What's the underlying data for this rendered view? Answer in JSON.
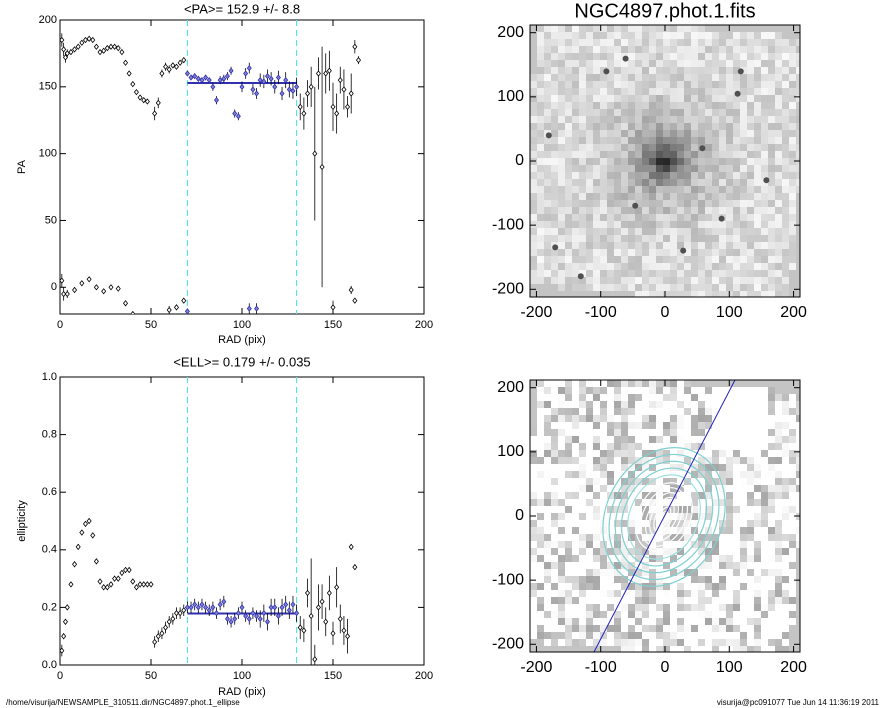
{
  "chart_data": [
    {
      "type": "errorbar",
      "title": "<PA>= 152.9 +/-   8.8",
      "x_label": "RAD (pix)",
      "y_label": "PA",
      "xlim": [
        0,
        200
      ],
      "xticks": [
        0,
        50,
        100,
        150,
        200
      ],
      "ylim": [
        -20,
        200
      ],
      "yticks": [
        0,
        50,
        100,
        150,
        200
      ],
      "color": "#000000",
      "fit_color": "#3030b0",
      "range_color": "#60e0e0",
      "mean": 152.9,
      "fit_range": [
        70,
        130
      ],
      "points": [
        [
          1,
          185,
          5
        ],
        [
          2,
          178,
          5
        ],
        [
          3,
          172,
          4
        ],
        [
          4,
          175,
          3
        ],
        [
          6,
          176,
          2
        ],
        [
          8,
          178,
          2
        ],
        [
          10,
          180,
          1
        ],
        [
          12,
          183,
          1
        ],
        [
          14,
          185,
          1
        ],
        [
          16,
          186,
          1
        ],
        [
          18,
          185,
          1
        ],
        [
          20,
          180,
          1
        ],
        [
          22,
          176,
          1
        ],
        [
          24,
          177,
          1
        ],
        [
          26,
          179,
          1
        ],
        [
          28,
          180,
          1
        ],
        [
          30,
          180,
          1
        ],
        [
          32,
          179,
          1
        ],
        [
          34,
          176,
          1
        ],
        [
          36,
          168,
          1
        ],
        [
          38,
          160,
          1
        ],
        [
          40,
          152,
          1
        ],
        [
          42,
          146,
          1
        ],
        [
          44,
          142,
          1
        ],
        [
          46,
          140,
          1
        ],
        [
          48,
          139,
          1
        ],
        [
          52,
          130,
          5
        ],
        [
          54,
          138,
          4
        ],
        [
          56,
          160,
          3
        ],
        [
          58,
          165,
          3
        ],
        [
          60,
          163,
          3
        ],
        [
          62,
          166,
          2
        ],
        [
          64,
          165,
          2
        ],
        [
          66,
          168,
          2
        ],
        [
          68,
          170,
          2
        ],
        [
          70,
          160,
          2
        ],
        [
          72,
          157,
          2
        ],
        [
          74,
          158,
          2
        ],
        [
          76,
          156,
          2
        ],
        [
          78,
          155,
          2
        ],
        [
          80,
          157,
          2
        ],
        [
          82,
          155,
          2
        ],
        [
          84,
          150,
          3
        ],
        [
          86,
          140,
          3
        ],
        [
          88,
          155,
          3
        ],
        [
          90,
          156,
          3
        ],
        [
          92,
          158,
          3
        ],
        [
          94,
          162,
          3
        ],
        [
          96,
          130,
          3
        ],
        [
          98,
          128,
          3
        ],
        [
          100,
          150,
          4
        ],
        [
          102,
          160,
          4
        ],
        [
          104,
          164,
          4
        ],
        [
          106,
          148,
          4
        ],
        [
          108,
          145,
          4
        ],
        [
          110,
          155,
          5
        ],
        [
          112,
          154,
          5
        ],
        [
          114,
          158,
          5
        ],
        [
          116,
          156,
          5
        ],
        [
          118,
          150,
          5
        ],
        [
          120,
          157,
          5
        ],
        [
          122,
          145,
          5
        ],
        [
          124,
          155,
          6
        ],
        [
          126,
          148,
          6
        ],
        [
          128,
          147,
          6
        ],
        [
          130,
          150,
          7
        ],
        [
          132,
          135,
          10
        ],
        [
          134,
          130,
          12
        ],
        [
          136,
          145,
          10
        ],
        [
          138,
          150,
          15
        ],
        [
          140,
          100,
          50
        ],
        [
          142,
          160,
          12
        ],
        [
          144,
          90,
          90
        ],
        [
          146,
          160,
          15
        ],
        [
          148,
          162,
          15
        ],
        [
          150,
          135,
          18
        ],
        [
          152,
          130,
          15
        ],
        [
          154,
          155,
          10
        ],
        [
          156,
          148,
          15
        ],
        [
          158,
          135,
          8
        ],
        [
          160,
          145,
          15
        ],
        [
          162,
          180,
          5
        ],
        [
          164,
          170,
          3
        ],
        [
          1,
          5,
          5
        ],
        [
          2,
          -5,
          5
        ],
        [
          4,
          -5,
          3
        ],
        [
          8,
          -2,
          2
        ],
        [
          12,
          3,
          1
        ],
        [
          16,
          6,
          1
        ],
        [
          20,
          0,
          1
        ],
        [
          24,
          -3,
          1
        ],
        [
          28,
          0,
          1
        ],
        [
          32,
          -1,
          1
        ],
        [
          36,
          -12,
          1
        ],
        [
          40,
          -20,
          1
        ],
        [
          60,
          -17,
          3
        ],
        [
          64,
          -15,
          2
        ],
        [
          68,
          -10,
          2
        ],
        [
          70,
          -18,
          2
        ],
        [
          104,
          -16,
          4
        ],
        [
          108,
          -16,
          4
        ],
        [
          150,
          -15,
          5
        ],
        [
          160,
          -2,
          3
        ],
        [
          162,
          -10,
          2
        ]
      ]
    },
    {
      "type": "errorbar",
      "title": "<ELL>= 0.179 +/-  0.035",
      "x_label": "RAD (pix)",
      "y_label": "ellipticity",
      "xlim": [
        0,
        200
      ],
      "xticks": [
        0,
        50,
        100,
        150,
        200
      ],
      "ylim": [
        0,
        1
      ],
      "yticks": [
        {
          "value": 0,
          "label": "0.0"
        },
        {
          "value": 0.2,
          "label": "0.2"
        },
        {
          "value": 0.4,
          "label": "0.4"
        },
        {
          "value": 0.6,
          "label": "0.6"
        },
        {
          "value": 0.8,
          "label": "0.8"
        },
        {
          "value": 1,
          "label": "1.0"
        }
      ],
      "color": "#000000",
      "fit_color": "#3030b0",
      "range_color": "#60e0e0",
      "mean": 0.179,
      "fit_range": [
        70,
        130
      ],
      "points": [
        [
          1,
          0.05,
          0.02
        ],
        [
          2,
          0.1,
          0.01
        ],
        [
          3,
          0.15,
          0.01
        ],
        [
          4,
          0.2,
          0.01
        ],
        [
          6,
          0.28,
          0.01
        ],
        [
          8,
          0.35,
          0.01
        ],
        [
          10,
          0.41,
          0.01
        ],
        [
          12,
          0.46,
          0.01
        ],
        [
          14,
          0.49,
          0.01
        ],
        [
          16,
          0.5,
          0.01
        ],
        [
          18,
          0.45,
          0.01
        ],
        [
          20,
          0.36,
          0.01
        ],
        [
          22,
          0.29,
          0.01
        ],
        [
          24,
          0.27,
          0.01
        ],
        [
          26,
          0.27,
          0.01
        ],
        [
          28,
          0.28,
          0.01
        ],
        [
          30,
          0.3,
          0.01
        ],
        [
          32,
          0.3,
          0.01
        ],
        [
          34,
          0.32,
          0.01
        ],
        [
          36,
          0.33,
          0.01
        ],
        [
          38,
          0.33,
          0.01
        ],
        [
          40,
          0.29,
          0.01
        ],
        [
          42,
          0.27,
          0.01
        ],
        [
          44,
          0.28,
          0.01
        ],
        [
          46,
          0.28,
          0.01
        ],
        [
          48,
          0.28,
          0.01
        ],
        [
          50,
          0.28,
          0.01
        ],
        [
          52,
          0.08,
          0.02
        ],
        [
          54,
          0.1,
          0.02
        ],
        [
          56,
          0.11,
          0.02
        ],
        [
          58,
          0.13,
          0.02
        ],
        [
          60,
          0.15,
          0.02
        ],
        [
          62,
          0.16,
          0.02
        ],
        [
          64,
          0.18,
          0.02
        ],
        [
          66,
          0.18,
          0.02
        ],
        [
          68,
          0.19,
          0.02
        ],
        [
          70,
          0.2,
          0.02
        ],
        [
          72,
          0.2,
          0.02
        ],
        [
          74,
          0.21,
          0.02
        ],
        [
          76,
          0.2,
          0.02
        ],
        [
          78,
          0.21,
          0.02
        ],
        [
          80,
          0.2,
          0.02
        ],
        [
          82,
          0.19,
          0.02
        ],
        [
          84,
          0.2,
          0.02
        ],
        [
          86,
          0.18,
          0.02
        ],
        [
          88,
          0.21,
          0.02
        ],
        [
          90,
          0.22,
          0.02
        ],
        [
          92,
          0.16,
          0.02
        ],
        [
          94,
          0.15,
          0.02
        ],
        [
          96,
          0.16,
          0.02
        ],
        [
          98,
          0.18,
          0.02
        ],
        [
          100,
          0.2,
          0.02
        ],
        [
          102,
          0.17,
          0.02
        ],
        [
          104,
          0.16,
          0.02
        ],
        [
          106,
          0.18,
          0.02
        ],
        [
          108,
          0.17,
          0.02
        ],
        [
          110,
          0.16,
          0.03
        ],
        [
          112,
          0.18,
          0.03
        ],
        [
          114,
          0.15,
          0.03
        ],
        [
          116,
          0.2,
          0.03
        ],
        [
          118,
          0.2,
          0.03
        ],
        [
          120,
          0.17,
          0.03
        ],
        [
          122,
          0.2,
          0.03
        ],
        [
          124,
          0.21,
          0.03
        ],
        [
          126,
          0.19,
          0.03
        ],
        [
          128,
          0.21,
          0.03
        ],
        [
          130,
          0.18,
          0.03
        ],
        [
          132,
          0.13,
          0.04
        ],
        [
          134,
          0.12,
          0.04
        ],
        [
          136,
          0.25,
          0.05
        ],
        [
          138,
          0.17,
          0.2
        ],
        [
          140,
          0.02,
          0.05
        ],
        [
          142,
          0.2,
          0.08
        ],
        [
          144,
          0.22,
          0.06
        ],
        [
          146,
          0.15,
          0.05
        ],
        [
          148,
          0.25,
          0.06
        ],
        [
          150,
          0.11,
          0.04
        ],
        [
          152,
          0.27,
          0.07
        ],
        [
          154,
          0.16,
          0.05
        ],
        [
          156,
          0.12,
          0.05
        ],
        [
          158,
          0.1,
          0.06
        ],
        [
          160,
          0.41,
          0.01
        ],
        [
          162,
          0.34,
          0.01
        ]
      ]
    },
    {
      "type": "image",
      "title": "NGC4897.phot.1.fits",
      "xlim": [
        -210,
        210
      ],
      "xticks": [
        -200,
        -100,
        0,
        100,
        200
      ],
      "ylim": [
        -212,
        212
      ],
      "yticks": [
        -200,
        -100,
        0,
        100,
        200
      ]
    },
    {
      "type": "image",
      "xlim": [
        -210,
        210
      ],
      "xticks": [
        -200,
        -100,
        0,
        100,
        200
      ],
      "ylim": [
        -212,
        212
      ],
      "yticks": [
        -200,
        -100,
        0,
        100,
        200
      ]
    }
  ],
  "footer": {
    "left": "/home/visurija/NEWSAMPLE_310511.dir/NGC4897.phot.1_ellipse",
    "right": "visurija@pc091077  Tue Jun 14 11:36:19 2011"
  }
}
